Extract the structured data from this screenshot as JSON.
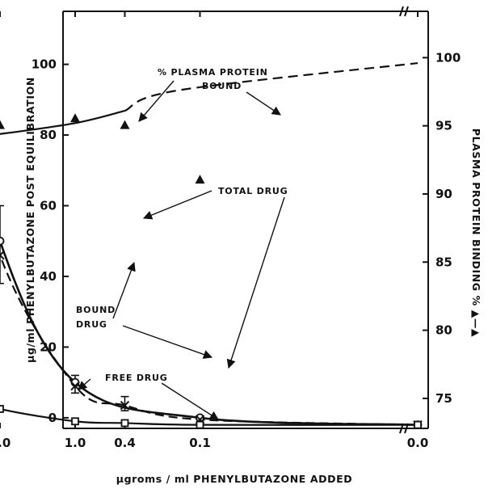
{
  "chart_data": {
    "type": "line",
    "title": "",
    "xlabel": "µgroms / ml PHENYLBUTAZONE ADDED",
    "ylabel_left": "µg/ml PHENYLBUTAZONE POST EQUILIBRATION",
    "ylabel_right": "PLASMA PROTEIN BINDING % ▲—▲",
    "x_scale": "log-reversed",
    "x_ticks": [
      {
        "value": 10,
        "label": "10.0"
      },
      {
        "value": 4,
        "label": "4.0"
      },
      {
        "value": 1,
        "label": "1.0"
      },
      {
        "value": 0.4,
        "label": "0.4"
      },
      {
        "value": 0.1,
        "label": "0.1"
      },
      {
        "value": 0,
        "label": "0.0"
      }
    ],
    "ylim_left": [
      -3,
      115
    ],
    "y_ticks_left": [
      0,
      20,
      40,
      60,
      80,
      100
    ],
    "ylim_right": [
      72.8,
      103.4
    ],
    "y_ticks_right": [
      75,
      80,
      85,
      90,
      95,
      100
    ],
    "series": [
      {
        "marker": "circle",
        "line": "solid",
        "axis": "left",
        "x": [
          10,
          4,
          1,
          0.1,
          0
        ],
        "y": [
          111,
          50,
          10,
          0,
          -2
        ]
      },
      {
        "marker": "cross",
        "line": "dashed",
        "axis": "left",
        "x": [
          10,
          4,
          1,
          0.4,
          0.1,
          0
        ],
        "y": [
          105,
          46,
          9,
          3.5,
          -0.5,
          -2
        ]
      },
      {
        "marker": "square",
        "line": "solid",
        "axis": "left",
        "x": [
          10,
          4,
          1,
          0.4,
          0.1,
          0
        ],
        "y": [
          7,
          2.5,
          -1,
          -1.5,
          -2,
          -2
        ]
      },
      {
        "marker": "triangle",
        "line": "solid-then-dashed",
        "axis": "right",
        "x": [
          10,
          4,
          1,
          0.4,
          0.1
        ],
        "y": [
          94,
          95,
          95.5,
          95,
          91
        ]
      }
    ],
    "error_bars": [
      {
        "x": 4,
        "y": 50,
        "low": 38,
        "high": 60
      },
      {
        "x": 1,
        "y": 10,
        "low": 7,
        "high": 12
      },
      {
        "x": 0.4,
        "y": 3.5,
        "low": 2,
        "high": 6
      }
    ],
    "annotations": [
      {
        "text": "% PLASMA PROTEIN",
        "text2": "BOUND"
      },
      {
        "text": "TOTAL DRUG",
        "text2": ""
      },
      {
        "text": "BOUND",
        "text2": "DRUG"
      },
      {
        "text": "FREE DRUG",
        "text2": ""
      }
    ],
    "grid": false,
    "legend": "none"
  }
}
